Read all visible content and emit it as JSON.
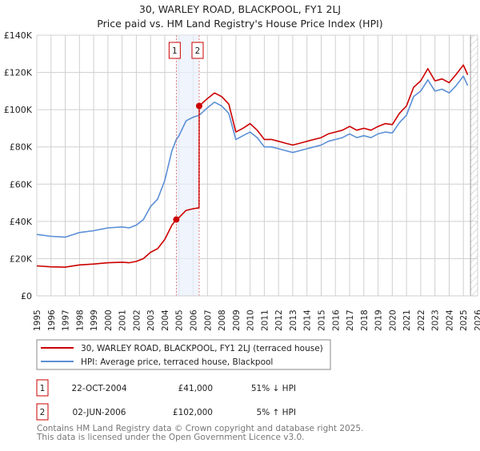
{
  "chart_data": {
    "type": "line",
    "title": "30, WARLEY ROAD, BLACKPOOL, FY1 2LJ",
    "subtitle": "Price paid vs. HM Land Registry's House Price Index (HPI)",
    "xlim": [
      1995,
      2026
    ],
    "ylim": [
      0,
      140000
    ],
    "grid": true,
    "x_ticks": [
      "1995",
      "1996",
      "1997",
      "1998",
      "1999",
      "2000",
      "2001",
      "2002",
      "2003",
      "2004",
      "2005",
      "2006",
      "2007",
      "2008",
      "2009",
      "2010",
      "2011",
      "2012",
      "2013",
      "2014",
      "2015",
      "2016",
      "2017",
      "2018",
      "2019",
      "2020",
      "2021",
      "2022",
      "2023",
      "2024",
      "2025",
      "2026"
    ],
    "y_ticks": [
      {
        "value": 0,
        "label": "£0"
      },
      {
        "value": 20000,
        "label": "£20K"
      },
      {
        "value": 40000,
        "label": "£40K"
      },
      {
        "value": 60000,
        "label": "£60K"
      },
      {
        "value": 80000,
        "label": "£80K"
      },
      {
        "value": 100000,
        "label": "£100K"
      },
      {
        "value": 120000,
        "label": "£120K"
      },
      {
        "value": 140000,
        "label": "£140K"
      }
    ],
    "forecast_hatch_from": 2025.5,
    "highlight_range": [
      2004.81,
      2006.42
    ],
    "series": [
      {
        "name": "30, WARLEY ROAD, BLACKPOOL, FY1 2LJ (terraced house)",
        "color": "#cc0000",
        "x": [
          1995,
          1996,
          1997,
          1998,
          1999,
          2000,
          2001,
          2001.5,
          2002,
          2002.5,
          2003,
          2003.5,
          2004,
          2004.5,
          2004.81,
          2005,
          2005.5,
          2006,
          2006.41,
          2006.42,
          2007,
          2007.5,
          2008,
          2008.5,
          2009,
          2009.5,
          2010,
          2010.5,
          2011,
          2011.5,
          2012,
          2012.5,
          2013,
          2013.5,
          2014,
          2014.5,
          2015,
          2015.5,
          2016,
          2016.5,
          2017,
          2017.5,
          2018,
          2018.5,
          2019,
          2019.5,
          2020,
          2020.5,
          2021,
          2021.5,
          2022,
          2022.5,
          2023,
          2023.5,
          2024,
          2024.5,
          2025,
          2025.3
        ],
        "values": [
          16100,
          15600,
          15400,
          16600,
          17100,
          17800,
          18100,
          17800,
          18500,
          20000,
          23400,
          25400,
          30300,
          38000,
          41000,
          42000,
          45900,
          46800,
          47300,
          102000,
          106000,
          109000,
          107000,
          103000,
          88000,
          90000,
          92500,
          89000,
          84000,
          84000,
          83000,
          82000,
          81000,
          82000,
          83000,
          84000,
          85000,
          87000,
          88000,
          89000,
          91000,
          89000,
          90000,
          89000,
          91000,
          92500,
          92000,
          98000,
          102000,
          112000,
          115500,
          122000,
          115500,
          116500,
          114500,
          119000,
          124000,
          118700
        ]
      },
      {
        "name": "HPI: Average price, terraced house, Blackpool",
        "color": "#5b8fd6",
        "x": [
          1995,
          1996,
          1997,
          1998,
          1999,
          2000,
          2001,
          2001.5,
          2002,
          2002.5,
          2003,
          2003.5,
          2004,
          2004.5,
          2004.81,
          2005,
          2005.5,
          2006,
          2006.42,
          2007,
          2007.5,
          2008,
          2008.5,
          2009,
          2009.5,
          2010,
          2010.5,
          2011,
          2011.5,
          2012,
          2012.5,
          2013,
          2013.5,
          2014,
          2014.5,
          2015,
          2015.5,
          2016,
          2016.5,
          2017,
          2017.5,
          2018,
          2018.5,
          2019,
          2019.5,
          2020,
          2020.5,
          2021,
          2021.5,
          2022,
          2022.5,
          2023,
          2023.5,
          2024,
          2024.5,
          2025,
          2025.3
        ],
        "values": [
          33000,
          32000,
          31500,
          34000,
          35000,
          36500,
          37000,
          36500,
          38000,
          41000,
          48000,
          52000,
          62000,
          78000,
          84000,
          86000,
          94000,
          96000,
          97000,
          101000,
          104000,
          102000,
          98000,
          84000,
          86000,
          88000,
          85000,
          80000,
          80000,
          79000,
          78000,
          77000,
          78000,
          79000,
          80000,
          81000,
          83000,
          84000,
          85000,
          87000,
          85000,
          86000,
          85000,
          87000,
          88000,
          87500,
          93000,
          97000,
          107000,
          110000,
          116000,
          110000,
          111000,
          109000,
          113000,
          118000,
          113000
        ]
      }
    ],
    "sales": [
      {
        "marker": "1",
        "x": 2004.81,
        "value": 41000,
        "date": "22-OCT-2004",
        "price": "£41,000",
        "hpi_diff": "51% ↓ HPI"
      },
      {
        "marker": "2",
        "x": 2006.42,
        "value": 102000,
        "date": "02-JUN-2006",
        "price": "£102,000",
        "hpi_diff": "5% ↑ HPI"
      }
    ]
  },
  "footer": {
    "line1": "Contains HM Land Registry data © Crown copyright and database right 2025.",
    "line2": "This data is licensed under the Open Government Licence v3.0."
  }
}
